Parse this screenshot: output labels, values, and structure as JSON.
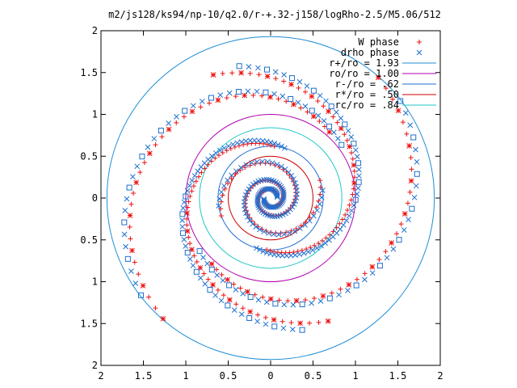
{
  "chart_data": {
    "type": "scatter",
    "title": "m2/js128/ks94/np-10/q2.0/r-+.32-j158/logRho-2.5/M5.06/512",
    "xlim": [
      -2,
      2
    ],
    "ylim": [
      -2,
      2
    ],
    "x_ticks": [
      -2,
      -1.5,
      -1,
      -0.5,
      0,
      0.5,
      1,
      1.5,
      2
    ],
    "x_tick_labels": [
      "2",
      "1.5",
      "1",
      "0.5",
      "0",
      "0.5",
      "1",
      "1.5",
      "2"
    ],
    "y_ticks": [
      2,
      1.5,
      1,
      0.5,
      0,
      -0.5,
      -1,
      -1.5,
      -2
    ],
    "y_tick_labels": [
      "2",
      "1.5",
      "1",
      "0.5",
      "0",
      "0.5",
      "1",
      "1.5",
      "2"
    ],
    "grid": false,
    "legend_position": "top-right",
    "circles": [
      {
        "label": "r+/ro = 1.93",
        "radius": 1.93,
        "color": "#1f8fd6"
      },
      {
        "label": "ro/ro = 1.00",
        "radius": 1.0,
        "color": "#b000b0"
      },
      {
        "label": "r-/ro = .62",
        "radius": 0.62,
        "color": "#1f6fd6"
      },
      {
        "label": "r*/ro = .50",
        "radius": 0.5,
        "color": "#cc0000"
      },
      {
        "label": "rc/ro = .84",
        "radius": 0.84,
        "color": "#20c8c8"
      }
    ],
    "series": [
      {
        "name": "W phase",
        "marker": "plus",
        "color": "#ee1111",
        "arms": [
          {
            "r_start": 0.08,
            "r_end": 0.62,
            "turns": 1.5,
            "phase": 0.35,
            "n": 70
          },
          {
            "r_start": 0.08,
            "r_end": 0.62,
            "turns": 1.5,
            "phase": 3.49,
            "n": 70
          },
          {
            "r_start": 0.62,
            "r_end": 1.62,
            "turns": 0.58,
            "phase": 1.5,
            "n": 55
          },
          {
            "r_start": 0.62,
            "r_end": 1.62,
            "turns": 0.58,
            "phase": 4.64,
            "n": 55
          },
          {
            "r_start": 1.05,
            "r_end": 1.92,
            "turns": 0.5,
            "phase": 0.85,
            "n": 40
          },
          {
            "r_start": 1.05,
            "r_end": 1.92,
            "turns": 0.5,
            "phase": 3.99,
            "n": 40
          }
        ]
      },
      {
        "name": "drho phase",
        "marker": "cross",
        "color": "#1e6fd0",
        "arms": [
          {
            "r_start": 0.08,
            "r_end": 0.62,
            "turns": 1.5,
            "phase": 0.15,
            "n": 70
          },
          {
            "r_start": 0.08,
            "r_end": 0.62,
            "turns": 1.5,
            "phase": 3.29,
            "n": 70
          },
          {
            "r_start": 0.62,
            "r_end": 1.62,
            "turns": 0.58,
            "phase": 1.3,
            "n": 55
          },
          {
            "r_start": 0.62,
            "r_end": 1.62,
            "turns": 0.58,
            "phase": 4.44,
            "n": 55
          },
          {
            "r_start": 1.05,
            "r_end": 1.92,
            "turns": 0.5,
            "phase": 0.65,
            "n": 40
          },
          {
            "r_start": 1.05,
            "r_end": 1.92,
            "turns": 0.5,
            "phase": 3.79,
            "n": 40
          }
        ]
      }
    ],
    "legend_entries": [
      {
        "label": "W phase",
        "kind": "plus",
        "color": "#ee1111"
      },
      {
        "label": "drho phase",
        "kind": "cross",
        "color": "#1e6fd0"
      },
      {
        "label": "r+/ro = 1.93",
        "kind": "line",
        "color": "#1f8fd6"
      },
      {
        "label": "ro/ro = 1.00",
        "kind": "line",
        "color": "#b000b0"
      },
      {
        "label": "r-/ro = .62",
        "kind": "line",
        "color": "#1f6fd6"
      },
      {
        "label": "r*/ro = .50",
        "kind": "line",
        "color": "#cc0000"
      },
      {
        "label": "rc/ro = .84",
        "kind": "line",
        "color": "#20c8c8"
      }
    ]
  }
}
